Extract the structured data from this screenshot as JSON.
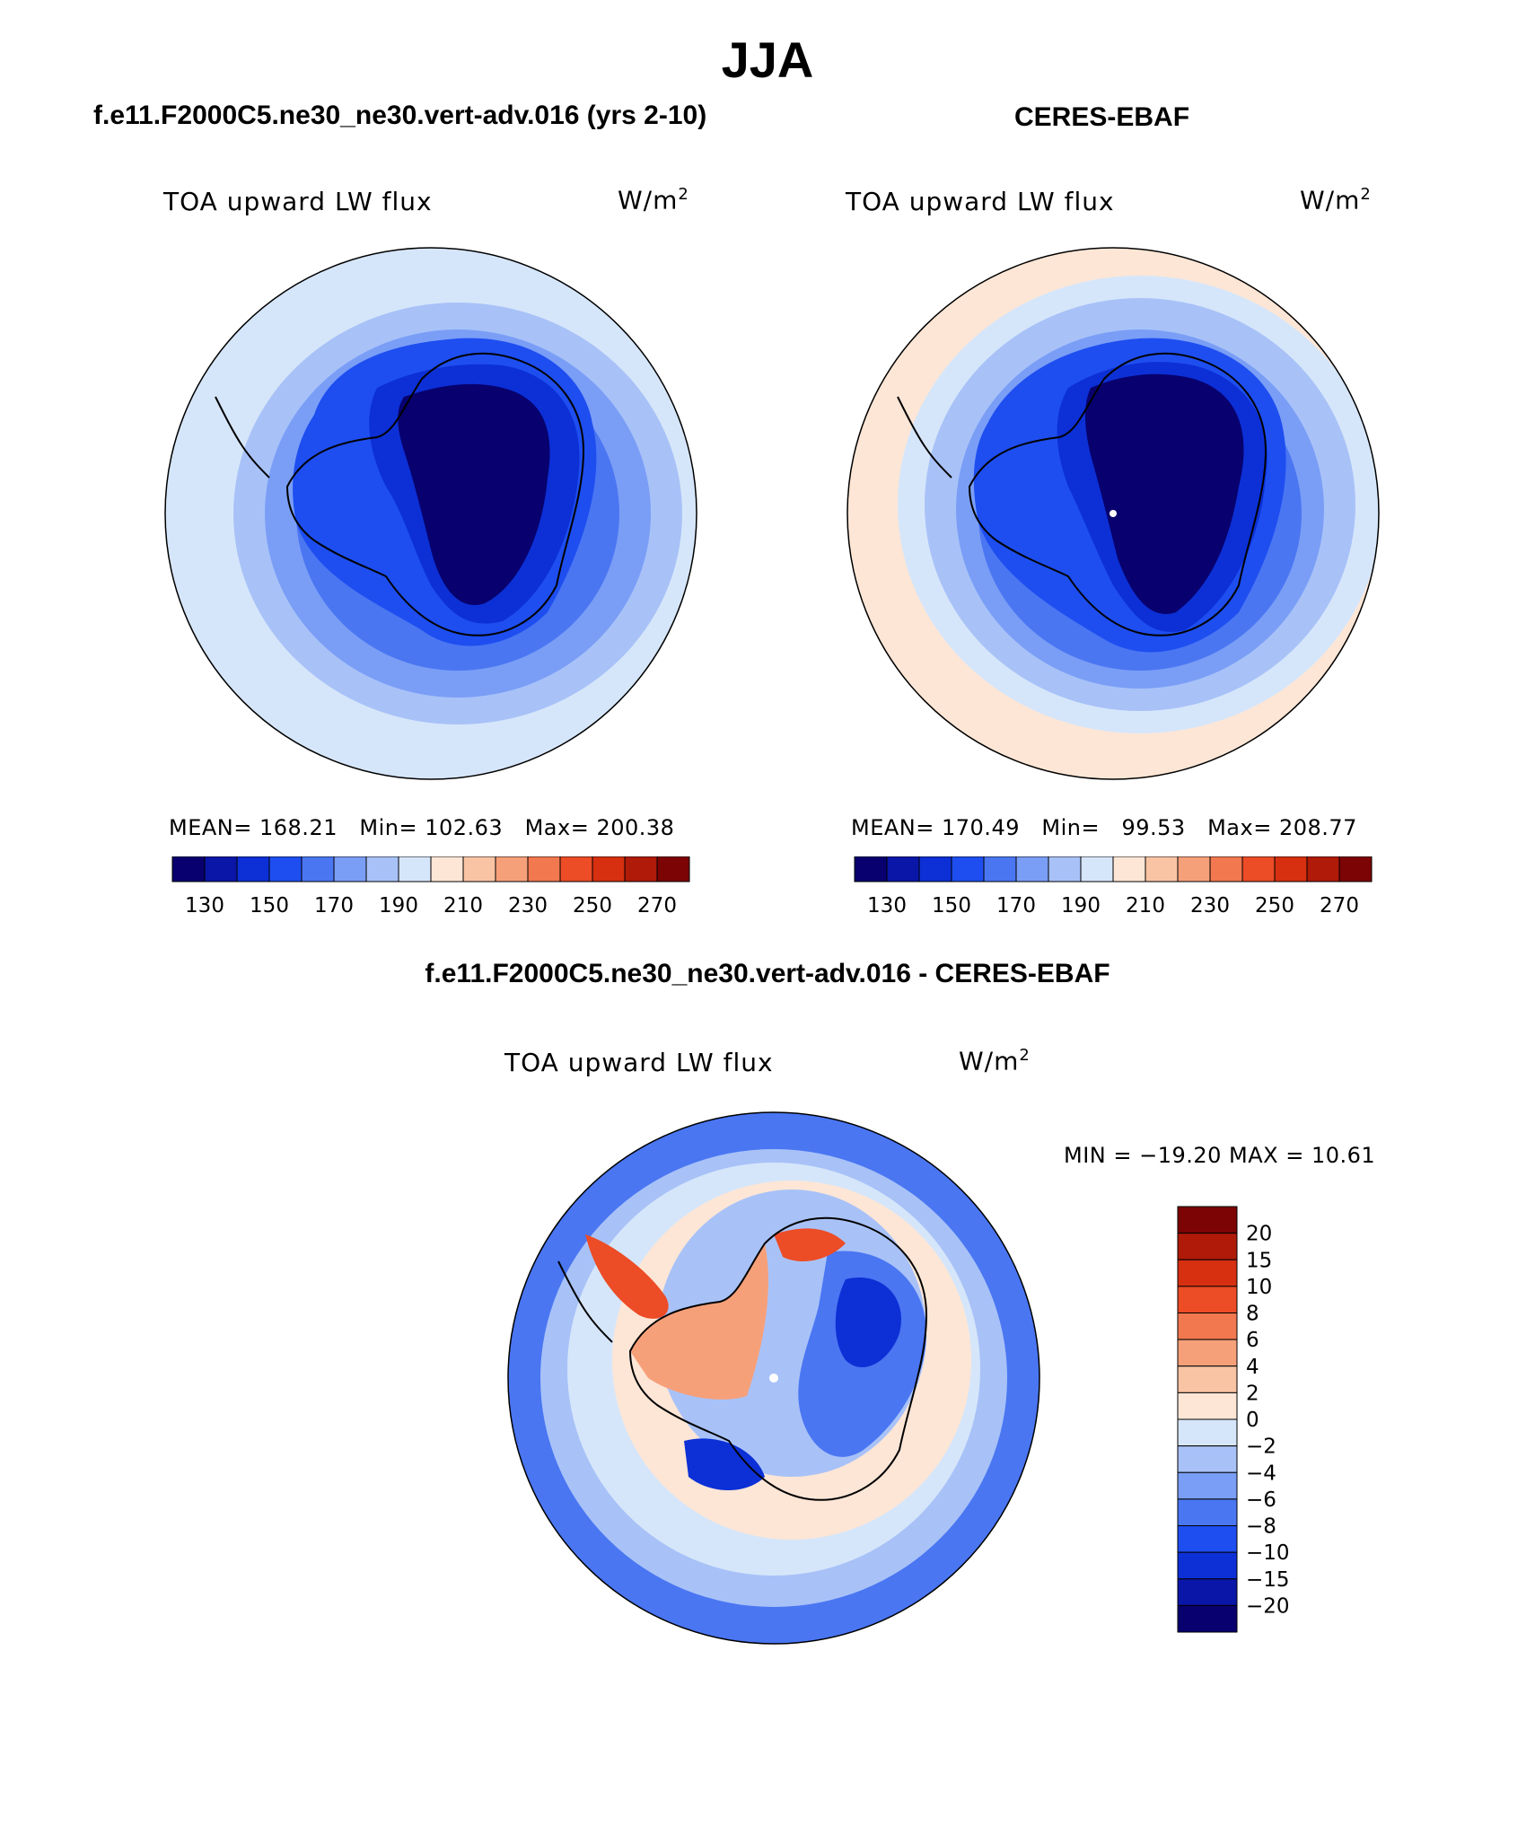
{
  "title": "JJA",
  "panels": [
    {
      "heading": "f.e11.F2000C5.ne30_ne30.vert-adv.016 (yrs 2-10)",
      "variable": "TOA upward LW flux",
      "units_base": "W/m",
      "units_exp": "2",
      "stats": {
        "mean_label": "MEAN=",
        "mean": "168.21",
        "min_label": "Min=",
        "min": "102.63",
        "max_label": "Max=",
        "max": "200.38"
      }
    },
    {
      "heading": "CERES-EBAF",
      "variable": "TOA upward LW flux",
      "units_base": "W/m",
      "units_exp": "2",
      "stats": {
        "mean_label": "MEAN=",
        "mean": "170.49",
        "min_label": "Min=",
        "min": "99.53",
        "max_label": "Max=",
        "max": "208.77"
      }
    },
    {
      "heading": "f.e11.F2000C5.ne30_ne30.vert-adv.016 - CERES-EBAF",
      "variable": "TOA upward LW flux",
      "units_base": "W/m",
      "units_exp": "2",
      "minmax": "MIN = −19.20 MAX =   10.61"
    }
  ],
  "colorbar_abs": {
    "colors": [
      "#08006e",
      "#0a16a8",
      "#0c30d6",
      "#1e4ef0",
      "#4a76f2",
      "#7a9ef6",
      "#a8c2f8",
      "#d6e6fa",
      "#fde6d6",
      "#f9c4a4",
      "#f6a07a",
      "#f27850",
      "#ec4c26",
      "#d63010",
      "#b01a08",
      "#7c0404"
    ],
    "tick_labels": [
      "130",
      "150",
      "170",
      "190",
      "210",
      "230",
      "250",
      "270"
    ]
  },
  "colorbar_diff": {
    "colors": [
      "#7c0404",
      "#b01a08",
      "#d63010",
      "#ec4c26",
      "#f27850",
      "#f6a07a",
      "#f9c4a4",
      "#fde6d6",
      "#d6e6fa",
      "#a8c2f8",
      "#7a9ef6",
      "#4a76f2",
      "#1e4ef0",
      "#0c30d6",
      "#0a16a8",
      "#08006e"
    ],
    "tick_labels": [
      "20",
      "15",
      "10",
      "8",
      "6",
      "4",
      "2",
      "0",
      "−2",
      "−4",
      "−6",
      "−8",
      "−10",
      "−15",
      "−20"
    ]
  },
  "map_palette": {
    "abs_outer": "#d6e6fa",
    "abs_ring2": "#a8c2f8",
    "abs_ring3": "#7a9ef6",
    "abs_ring4": "#4a76f2",
    "abs_ring5": "#1e4ef0",
    "abs_ring6": "#0c30d6",
    "abs_core": "#08006e",
    "obs_warm_edge": "#fde6d6",
    "diff_base": "#d6e6fa",
    "diff_blue": "#4a76f2",
    "diff_lightblue": "#a8c2f8",
    "diff_pink": "#fde6d6",
    "diff_orange": "#f6a07a",
    "diff_red": "#ec4c26",
    "diff_darkblue": "#0c30d6",
    "coast": "#000000"
  }
}
